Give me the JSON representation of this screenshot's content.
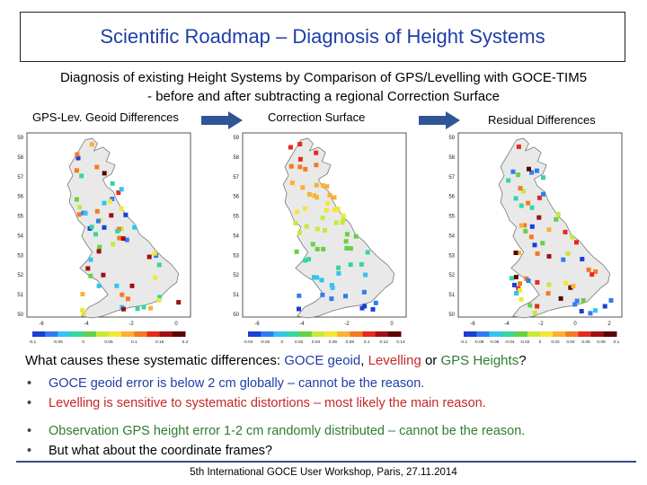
{
  "header": {
    "title": "Scientific Roadmap – Diagnosis of Height Systems"
  },
  "intro": {
    "line1": "Diagnosis of existing Height Systems by Comparison of GPS/Levelling with GOCE-TIM5",
    "line2": "- before and after subtracting a regional Correction Surface"
  },
  "maps": [
    {
      "label": "GPS-Lev. Geoid Differences",
      "x_ticks": [
        "-6",
        "-4",
        "-2",
        "0"
      ],
      "y_ticks": [
        "59",
        "58",
        "57",
        "56",
        "55",
        "54",
        "53",
        "52",
        "51",
        "50"
      ],
      "colorbar_ticks": [
        "-0.1",
        "-0.05",
        "0",
        "0.05",
        "0.1",
        "0.15",
        "0.2"
      ]
    },
    {
      "label": "Correction Surface",
      "x_ticks": [
        "-6",
        "-4",
        "-2",
        "0"
      ],
      "y_ticks": [
        "59",
        "58",
        "57",
        "56",
        "55",
        "54",
        "53",
        "52",
        "51",
        "50"
      ],
      "colorbar_ticks": [
        "-0.04",
        "-0.02",
        "0",
        "0.02",
        "0.04",
        "0.06",
        "0.08",
        "0.1",
        "0.12",
        "0.14"
      ]
    },
    {
      "label": "Residual Differences",
      "x_ticks": [
        "-6",
        "-4",
        "-2",
        "0",
        "2"
      ],
      "y_ticks": [
        "59",
        "58",
        "57",
        "56",
        "55",
        "54",
        "53",
        "52",
        "51",
        "50"
      ],
      "colorbar_ticks": [
        "-0.1",
        "-0.08",
        "-0.06",
        "-0.04",
        "-0.02",
        "0",
        "0.02",
        "0.04",
        "0.06",
        "0.08",
        "0.1"
      ]
    }
  ],
  "question": {
    "prefix": "What causes these systematic differences: ",
    "goce": "GOCE geoid",
    "sep1": ", ",
    "levelling": "Levelling",
    "sep2": " or ",
    "gps": "GPS Heights",
    "suffix": "?"
  },
  "bullets_group1": [
    {
      "text": "GOCE geoid error is below 2 cm globally – cannot be the reason.",
      "color": "#1f3ea6"
    },
    {
      "text": "Levelling is sensitive to systematic distortions – most likely the main reason.",
      "color": "#c62828"
    }
  ],
  "bullets_group2": [
    {
      "text": "Observation GPS height error 1-2 cm randomly distributed – cannot be the reason.",
      "color": "#2e7d32"
    },
    {
      "text": "But what about the coordinate frames?",
      "color": "#000000"
    }
  ],
  "footer": {
    "text": "5th International GOCE User Workshop, Paris, 27.11.2014"
  },
  "colors": {
    "title": "#1f3ea6",
    "arrow": "#2f5597",
    "land": "#e9e9e9"
  }
}
